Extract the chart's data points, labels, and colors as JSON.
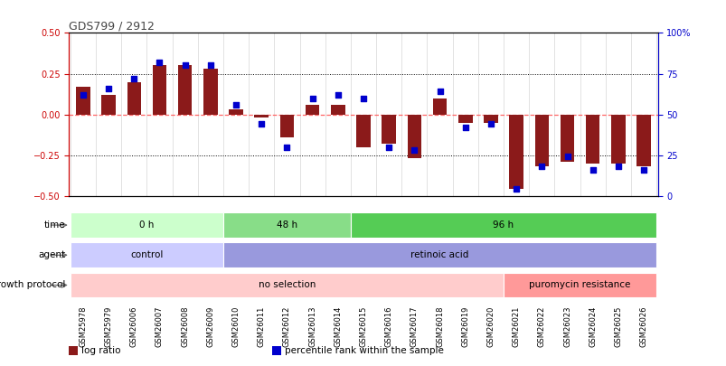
{
  "title": "GDS799 / 2912",
  "samples": [
    "GSM25978",
    "GSM25979",
    "GSM26006",
    "GSM26007",
    "GSM26008",
    "GSM26009",
    "GSM26010",
    "GSM26011",
    "GSM26012",
    "GSM26013",
    "GSM26014",
    "GSM26015",
    "GSM26016",
    "GSM26017",
    "GSM26018",
    "GSM26019",
    "GSM26020",
    "GSM26021",
    "GSM26022",
    "GSM26023",
    "GSM26024",
    "GSM26025",
    "GSM26026"
  ],
  "log_ratio": [
    0.17,
    0.12,
    0.2,
    0.3,
    0.3,
    0.28,
    0.03,
    -0.02,
    -0.14,
    0.06,
    0.06,
    -0.2,
    -0.18,
    -0.27,
    0.1,
    -0.05,
    -0.05,
    -0.46,
    -0.32,
    -0.29,
    -0.3,
    -0.3,
    -0.32
  ],
  "percentile": [
    62,
    66,
    72,
    82,
    80,
    80,
    56,
    44,
    30,
    60,
    62,
    60,
    30,
    28,
    64,
    42,
    44,
    4,
    18,
    24,
    16,
    18,
    16
  ],
  "bar_color": "#8B1A1A",
  "dot_color": "#0000CD",
  "ylim_left": [
    -0.5,
    0.5
  ],
  "ylim_right": [
    0,
    100
  ],
  "yticks_left": [
    -0.5,
    -0.25,
    0.0,
    0.25,
    0.5
  ],
  "yticks_right": [
    0,
    25,
    50,
    75,
    100
  ],
  "hlines_dotted": [
    0.25,
    -0.25
  ],
  "zero_line_color": "#FF6666",
  "time_groups": [
    {
      "label": "0 h",
      "start": 0,
      "end": 6,
      "color": "#CCFFCC"
    },
    {
      "label": "48 h",
      "start": 6,
      "end": 11,
      "color": "#88DD88"
    },
    {
      "label": "96 h",
      "start": 11,
      "end": 23,
      "color": "#55CC55"
    }
  ],
  "agent_groups": [
    {
      "label": "control",
      "start": 0,
      "end": 6,
      "color": "#CCCCFF"
    },
    {
      "label": "retinoic acid",
      "start": 6,
      "end": 23,
      "color": "#9999DD"
    }
  ],
  "growth_groups": [
    {
      "label": "no selection",
      "start": 0,
      "end": 17,
      "color": "#FFCCCC"
    },
    {
      "label": "puromycin resistance",
      "start": 17,
      "end": 23,
      "color": "#FF9999"
    }
  ],
  "legend_items": [
    {
      "label": "log ratio",
      "color": "#8B1A1A"
    },
    {
      "label": "percentile rank within the sample",
      "color": "#0000CD"
    }
  ],
  "left_axis_color": "#CC0000",
  "right_axis_color": "#0000CC",
  "title_color": "#444444"
}
